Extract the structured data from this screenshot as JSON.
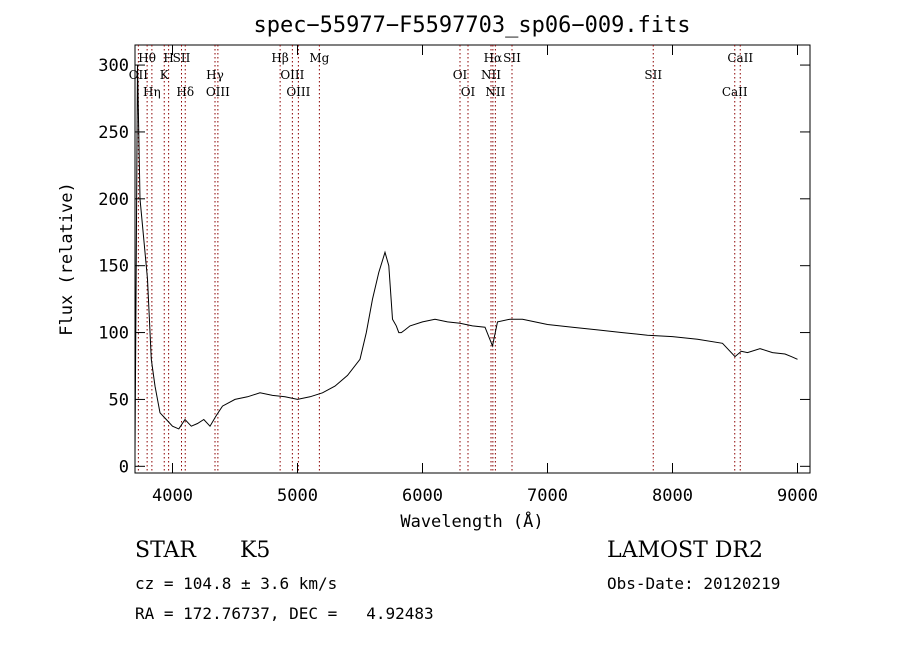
{
  "chart_data": {
    "type": "line",
    "title": "spec−55977−F5597703_sp06−009.fits",
    "xlabel": "Wavelength (Å)",
    "ylabel": "Flux (relative)",
    "xlim": [
      3700,
      9100
    ],
    "ylim": [
      -5,
      315
    ],
    "xticks": [
      4000,
      5000,
      6000,
      7000,
      8000,
      9000
    ],
    "yticks": [
      0,
      50,
      100,
      150,
      200,
      250,
      300
    ],
    "grid": false,
    "legend": "none",
    "line_color": "#000000",
    "marker_color": "#8b0000",
    "x": [
      3700,
      3720,
      3740,
      3760,
      3780,
      3800,
      3830,
      3860,
      3900,
      3950,
      4000,
      4050,
      4100,
      4150,
      4200,
      4250,
      4300,
      4350,
      4400,
      4500,
      4600,
      4700,
      4800,
      4900,
      5000,
      5100,
      5200,
      5300,
      5400,
      5500,
      5550,
      5600,
      5650,
      5700,
      5730,
      5760,
      5790,
      5810,
      5830,
      5860,
      5900,
      6000,
      6100,
      6200,
      6300,
      6400,
      6500,
      6560,
      6600,
      6700,
      6800,
      6900,
      7000,
      7200,
      7400,
      7600,
      7800,
      8000,
      8200,
      8400,
      8500,
      8550,
      8600,
      8700,
      8800,
      8900,
      8950,
      9000
    ],
    "y": [
      10,
      300,
      200,
      180,
      160,
      140,
      80,
      60,
      40,
      35,
      30,
      28,
      35,
      30,
      32,
      35,
      30,
      38,
      45,
      50,
      52,
      55,
      53,
      52,
      50,
      52,
      55,
      60,
      68,
      80,
      100,
      125,
      145,
      160,
      150,
      110,
      105,
      100,
      100,
      102,
      105,
      108,
      110,
      108,
      107,
      105,
      104,
      90,
      108,
      110,
      110,
      108,
      106,
      104,
      102,
      100,
      98,
      97,
      95,
      92,
      82,
      86,
      85,
      88,
      85,
      84,
      82,
      80
    ],
    "lines": [
      {
        "name": "Hθ",
        "x": 3797
      },
      {
        "name": "OII",
        "x": 3727
      },
      {
        "name": "Hη",
        "x": 3835
      },
      {
        "name": "H",
        "x": 3969
      },
      {
        "name": "K",
        "x": 3934
      },
      {
        "name": "Hδ",
        "x": 4102
      },
      {
        "name": "SII",
        "x": 4072
      },
      {
        "name": "Hγ",
        "x": 4340
      },
      {
        "name": "OIII",
        "x": 4363
      },
      {
        "name": "Hβ",
        "x": 4861
      },
      {
        "name": "OIII",
        "x": 4959
      },
      {
        "name": "OIII",
        "x": 5007
      },
      {
        "name": "Mg",
        "x": 5175
      },
      {
        "name": "OI",
        "x": 6300
      },
      {
        "name": "OI",
        "x": 6364
      },
      {
        "name": "Hα",
        "x": 6563
      },
      {
        "name": "NII",
        "x": 6548
      },
      {
        "name": "NII",
        "x": 6583
      },
      {
        "name": "SII",
        "x": 6716
      },
      {
        "name": "SII",
        "x": 7846
      },
      {
        "name": "CaII",
        "x": 8498
      },
      {
        "name": "CaII",
        "x": 8542
      }
    ]
  },
  "info": {
    "object_class": "STAR",
    "subclass": "K5",
    "survey": "LAMOST DR2",
    "cz": "cz = 104.8 ± 3.6 km/s",
    "obs_date": "Obs-Date: 20120219",
    "radec": "RA = 172.76737, DEC =   4.92483"
  }
}
